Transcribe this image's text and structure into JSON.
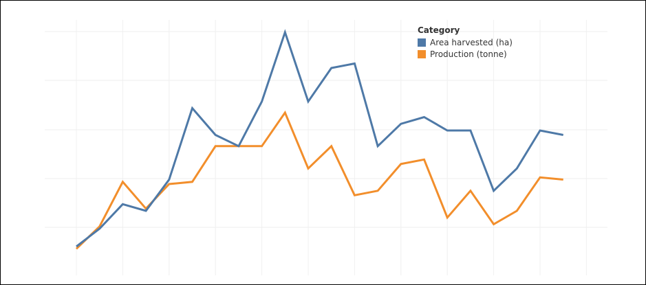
{
  "chart_data": {
    "type": "line",
    "title": "",
    "xlabel": "",
    "ylabel": "",
    "grid": true,
    "legend": {
      "title": "Category",
      "placement": "top-right"
    },
    "x": [
      1,
      2,
      3,
      4,
      5,
      6,
      7,
      8,
      9,
      10,
      11,
      12,
      13,
      14,
      15,
      16,
      17,
      18,
      19,
      20,
      21,
      22,
      23
    ],
    "ylim": [
      0,
      100
    ],
    "series": [
      {
        "name": "Area harvested (ha)",
        "color": "#4e79a7",
        "values": [
          4,
          12,
          23,
          20,
          34,
          66,
          54,
          49,
          69,
          100,
          69,
          84,
          86,
          49,
          59,
          62,
          56,
          56,
          29,
          39,
          56,
          54,
          null
        ]
      },
      {
        "name": "Production (tonne)",
        "color": "#f28e2b",
        "values": [
          3,
          13,
          33,
          21,
          32,
          33,
          49,
          49,
          49,
          64,
          39,
          49,
          27,
          29,
          41,
          43,
          17,
          29,
          14,
          20,
          35,
          34,
          null
        ]
      }
    ]
  }
}
